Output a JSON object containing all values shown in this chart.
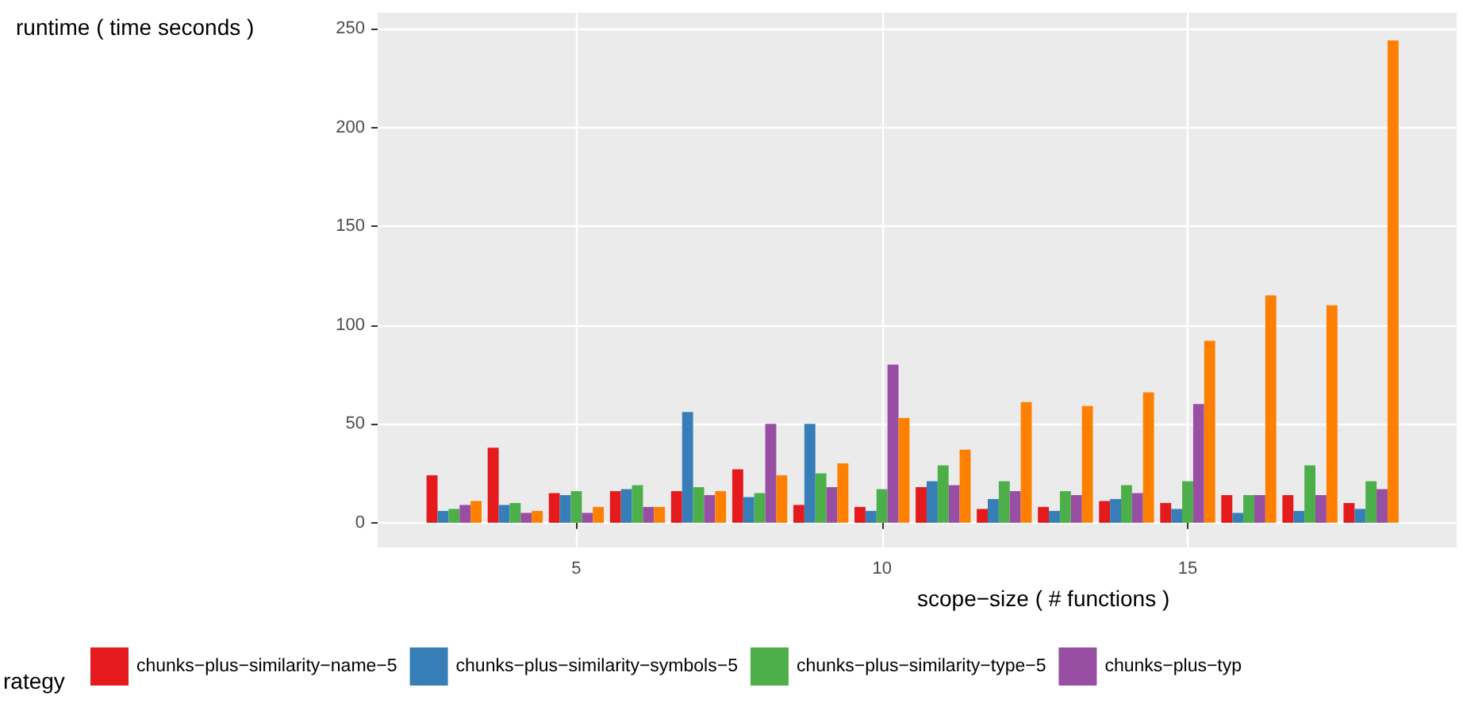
{
  "chart_data": {
    "type": "bar",
    "xlabel": "scope−size ( # functions )",
    "ylabel": "runtime ( time seconds )",
    "legend_title": "rategy",
    "x": [
      3,
      4,
      5,
      6,
      7,
      8,
      9,
      10,
      11,
      12,
      13,
      14,
      15,
      16,
      17,
      18
    ],
    "series": [
      {
        "name": "chunks−plus−similarity−name−5",
        "color": "#e41a1c",
        "values": [
          24,
          38,
          15,
          16,
          16,
          27,
          9,
          8,
          18,
          7,
          8,
          11,
          10,
          14,
          14,
          10
        ]
      },
      {
        "name": "chunks−plus−similarity−symbols−5",
        "color": "#377eb8",
        "values": [
          6,
          9,
          14,
          17,
          56,
          13,
          50,
          6,
          21,
          12,
          6,
          12,
          7,
          5,
          6,
          7
        ]
      },
      {
        "name": "chunks−plus−similarity−type−5",
        "color": "#4daf4a",
        "values": [
          7,
          10,
          16,
          19,
          18,
          15,
          25,
          17,
          29,
          21,
          16,
          19,
          21,
          14,
          29,
          21
        ]
      },
      {
        "name": "chunks−plus−typ",
        "color": "#984ea3",
        "values": [
          9,
          5,
          5,
          8,
          14,
          50,
          18,
          80,
          19,
          16,
          14,
          15,
          60,
          14,
          14,
          17
        ]
      },
      {
        "color": "#ff7f00",
        "values": [
          11,
          6,
          8,
          8,
          16,
          24,
          30,
          53,
          37,
          61,
          59,
          66,
          92,
          115,
          110,
          244
        ]
      }
    ],
    "xlim": [
      1.75,
      19.4
    ],
    "ylim": [
      -12.5,
      258
    ],
    "xticks": [
      5,
      10,
      15
    ],
    "yticks": [
      0,
      50,
      100,
      150,
      200,
      250
    ],
    "grid": true,
    "legend": "bottom"
  }
}
